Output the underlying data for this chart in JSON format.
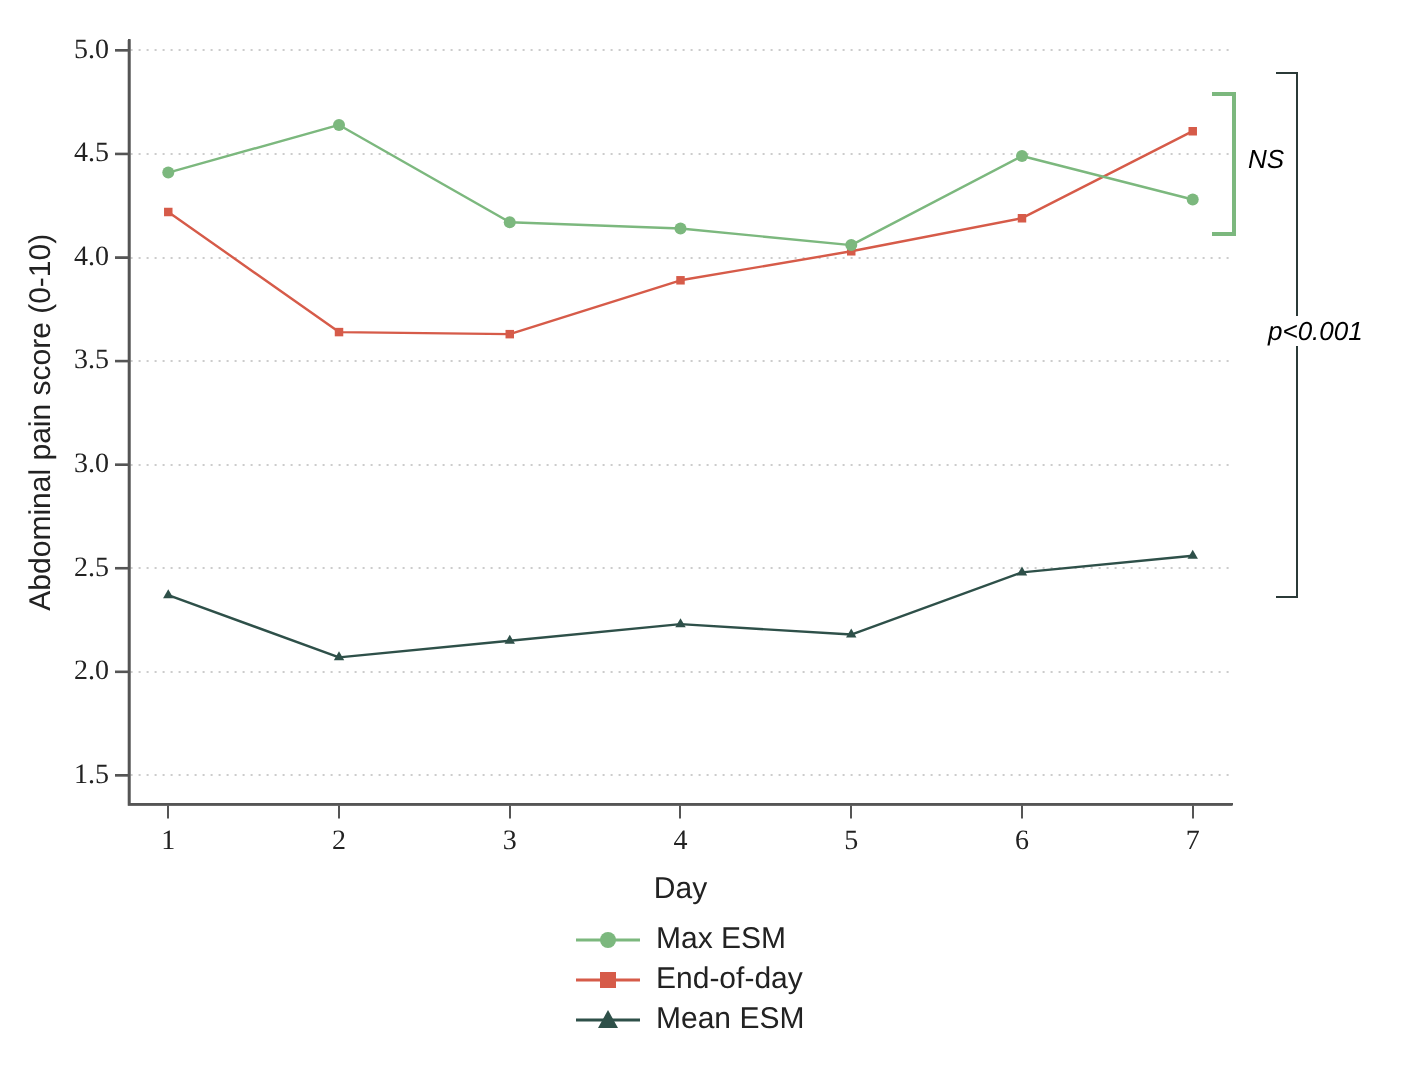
{
  "chart_data": {
    "type": "line",
    "xlabel": "Day",
    "ylabel": "Abdominal pain score (0-10)",
    "x": [
      1,
      2,
      3,
      4,
      5,
      6,
      7
    ],
    "series": [
      {
        "name": "Max ESM",
        "color": "#7cb87e",
        "marker": "circle",
        "values": [
          4.41,
          4.64,
          4.17,
          4.14,
          4.06,
          4.49,
          4.28
        ]
      },
      {
        "name": "End-of-day",
        "color": "#d65b49",
        "marker": "square",
        "values": [
          4.22,
          3.64,
          3.63,
          3.89,
          4.03,
          4.19,
          4.61
        ]
      },
      {
        "name": "Mean ESM",
        "color": "#2e5049",
        "marker": "triangle",
        "values": [
          2.37,
          2.07,
          2.15,
          2.23,
          2.18,
          2.48,
          2.56
        ]
      }
    ],
    "xlim": [
      0.77,
      7.23
    ],
    "xticks": [
      1,
      2,
      3,
      4,
      5,
      6,
      7
    ],
    "ylim": [
      1.36,
      5.05
    ],
    "yticks": [
      {
        "value": 1.5,
        "label": "1.5"
      },
      {
        "value": 2,
        "label": "2.0"
      },
      {
        "value": 2.5,
        "label": "2.5"
      },
      {
        "value": 3,
        "label": "3.0"
      },
      {
        "value": 3.5,
        "label": "3.5"
      },
      {
        "value": 4,
        "label": "4.0"
      },
      {
        "value": 4.5,
        "label": "4.5"
      },
      {
        "value": 5,
        "label": "5.0"
      }
    ],
    "grid": "y",
    "legend": "bottom",
    "line_style": "solid",
    "annotations": [
      "NS",
      "p<0.001"
    ]
  }
}
